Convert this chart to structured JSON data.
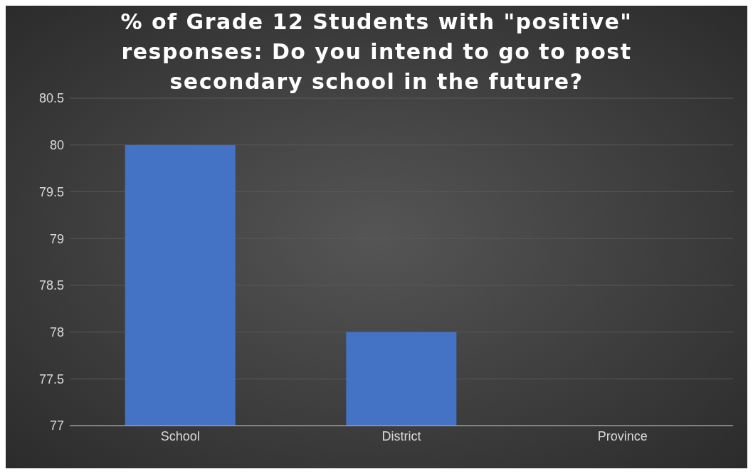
{
  "chart_data": {
    "type": "bar",
    "title": "% of Grade 12 Students with \"positive\" responses: Do you intend to go to post secondary school in the future?",
    "categories": [
      "School",
      "District",
      "Province"
    ],
    "values": [
      80,
      78,
      77
    ],
    "color": "#4472c4",
    "ylim": [
      77,
      80.5
    ],
    "yticks": [
      77,
      77.5,
      78,
      78.5,
      79,
      79.5,
      80,
      80.5
    ],
    "grid": "y"
  }
}
